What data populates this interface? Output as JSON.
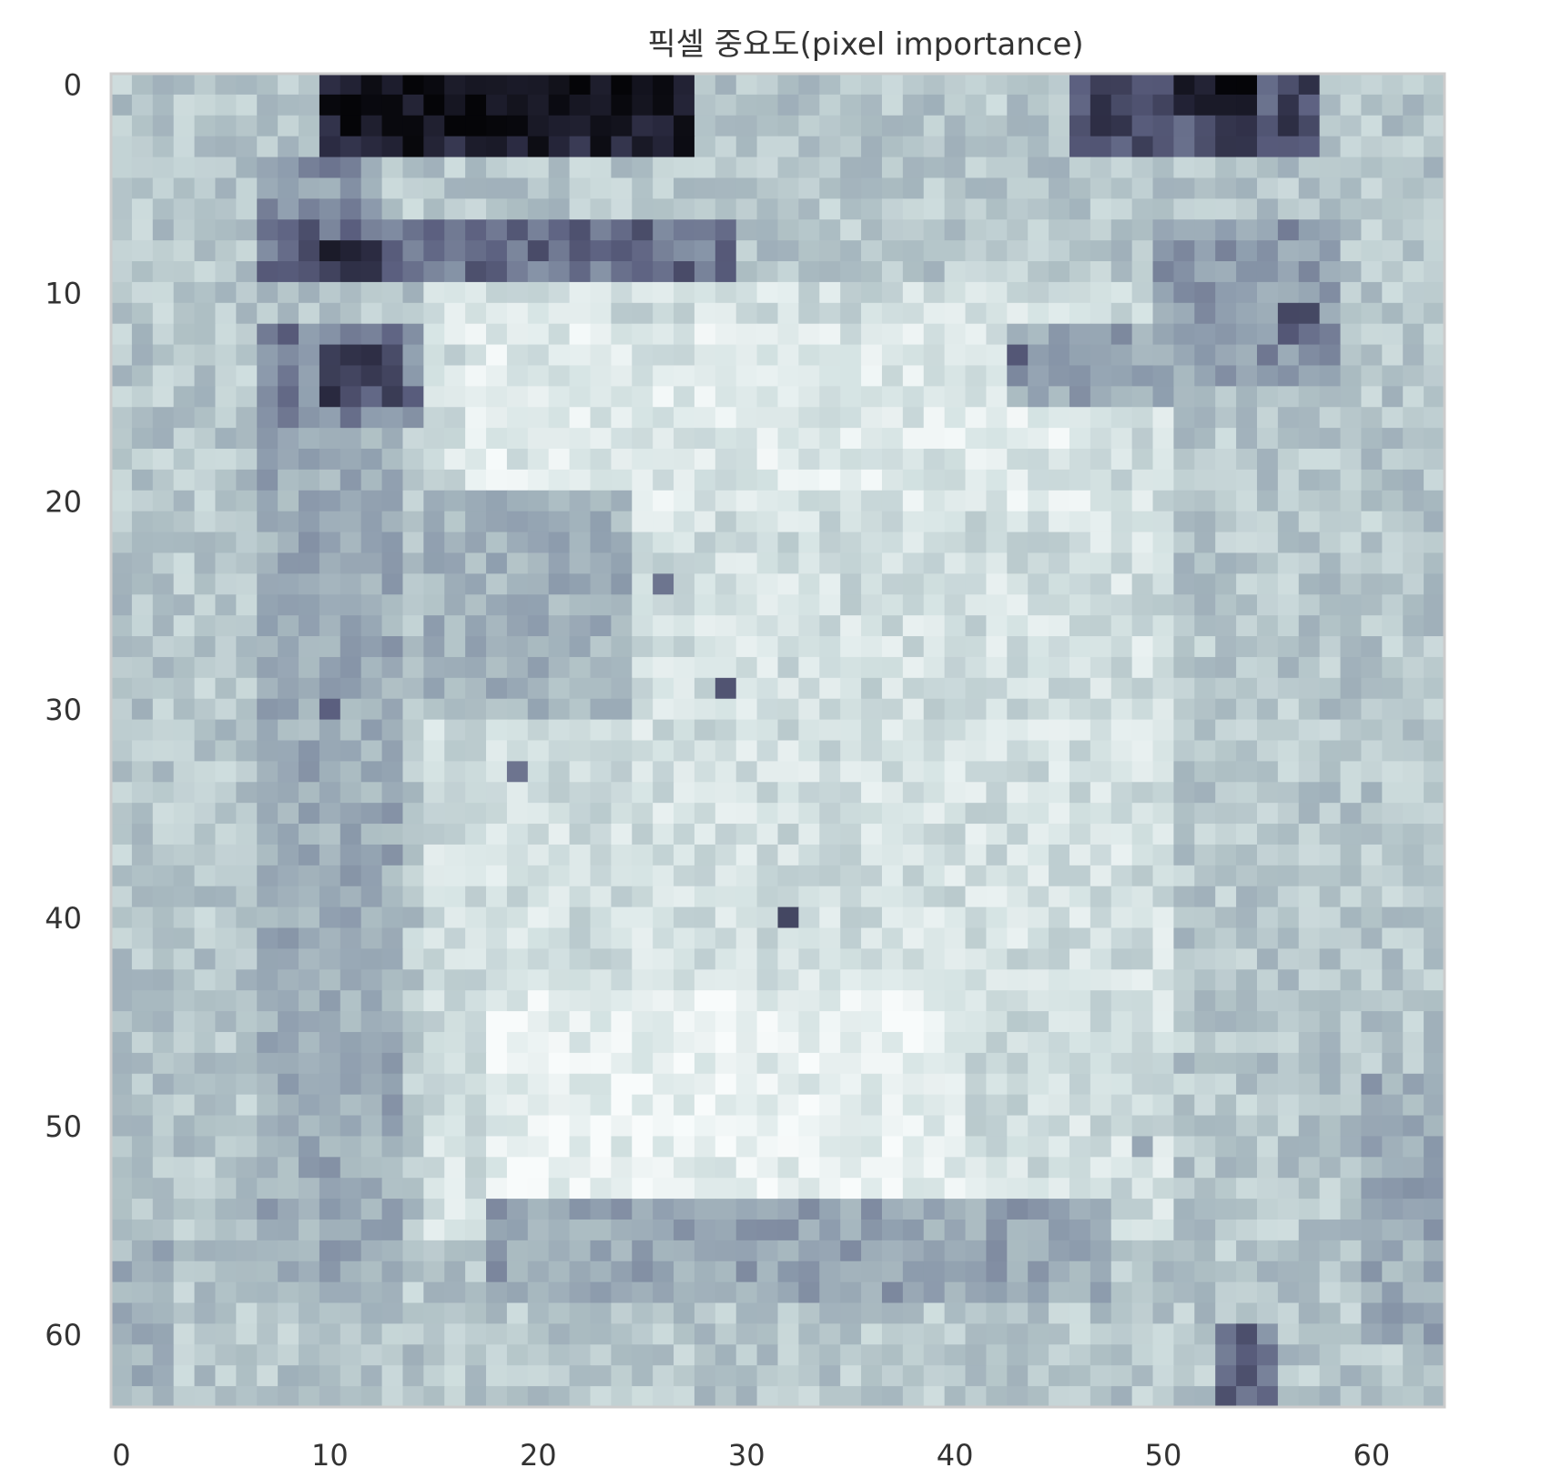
{
  "chart_data": {
    "type": "heatmap",
    "title": "픽셀 중요도(pixel importance)",
    "xlabel": "",
    "ylabel": "",
    "rows": 64,
    "cols": 64,
    "xlim": [
      -0.5,
      63.5
    ],
    "ylim": [
      63.5,
      -0.5
    ],
    "x_ticks": [
      0,
      10,
      20,
      30,
      40,
      50,
      60
    ],
    "y_ticks": [
      0,
      10,
      20,
      30,
      40,
      50,
      60
    ],
    "grid": false,
    "colormap": "bone_r",
    "colormap_stops": [
      "#f8fbfb",
      "#d5e3e3",
      "#aebfc4",
      "#8d9cad",
      "#5b5f7f",
      "#2a2a40",
      "#050508"
    ],
    "value_range": [
      0,
      1
    ],
    "frame_color": "#cccccc",
    "importance_regions": [
      {
        "region": "top-edge rows 0-3, cols 10-27",
        "importance": 0.95
      },
      {
        "region": "top-edge rows 0-3, cols 47-57",
        "importance": 0.85
      },
      {
        "region": "upper band rows 7-9, cols 7-29",
        "importance": 0.65
      },
      {
        "region": "rows 12-16, cols 7-14",
        "importance": 0.6
      },
      {
        "region": "right band rows 8-14, cols 52-58",
        "importance": 0.5
      },
      {
        "region": "left column rows 16-58, cols 6-14",
        "importance": 0.4
      },
      {
        "region": "bottom band rows 54-58, cols 18-47",
        "importance": 0.45
      },
      {
        "region": "bottom-right rows 60-63, col 54-55",
        "importance": 0.6
      },
      {
        "region": "center rows 10-55, cols 15-50",
        "importance": 0.15
      }
    ]
  }
}
